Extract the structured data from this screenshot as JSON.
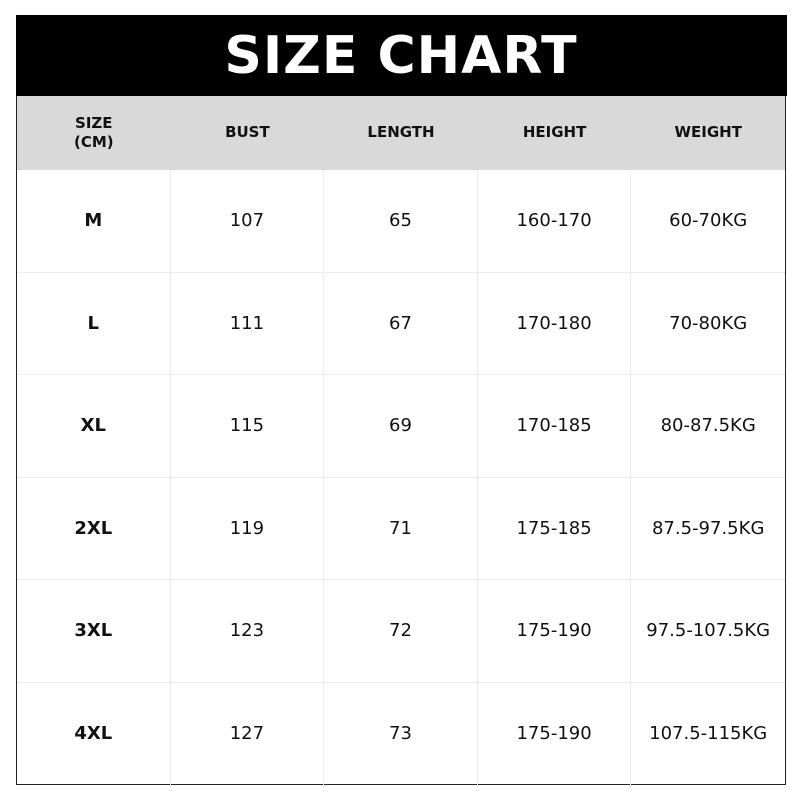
{
  "title": "SIZE CHART",
  "headers": [
    "SIZE\n(CM)",
    "BUST",
    "LENGTH",
    "HEIGHT",
    "WEIGHT"
  ],
  "rows": [
    [
      "M",
      "107",
      "65",
      "160-170",
      "60-70KG"
    ],
    [
      "L",
      "111",
      "67",
      "170-180",
      "70-80KG"
    ],
    [
      "XL",
      "115",
      "69",
      "170-185",
      "80-87.5KG"
    ],
    [
      "2XL",
      "119",
      "71",
      "175-185",
      "87.5-97.5KG"
    ],
    [
      "3XL",
      "123",
      "72",
      "175-190",
      "97.5-107.5KG"
    ],
    [
      "4XL",
      "127",
      "73",
      "175-190",
      "107.5-115KG"
    ]
  ],
  "colors": {
    "title_bg": "#000000",
    "header_bg": "#d9d9d9",
    "grid": "#ececec"
  }
}
